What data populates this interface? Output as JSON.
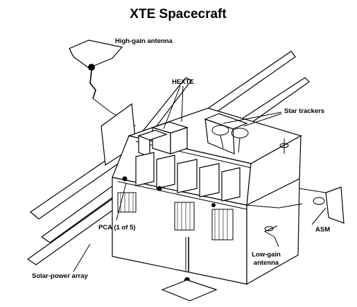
{
  "title": "XTE Spacecraft",
  "labels": {
    "high_gain_antenna": "High-gain antenna",
    "hexte": "HEXTE",
    "star_trackers": "Star trackers",
    "pca": "PCA (1 of 5)",
    "asm": "ASM",
    "low_gain_antenna_line1": "Low-gain",
    "low_gain_antenna_line2": "antenna",
    "solar_power_array": "Solar-power array"
  }
}
